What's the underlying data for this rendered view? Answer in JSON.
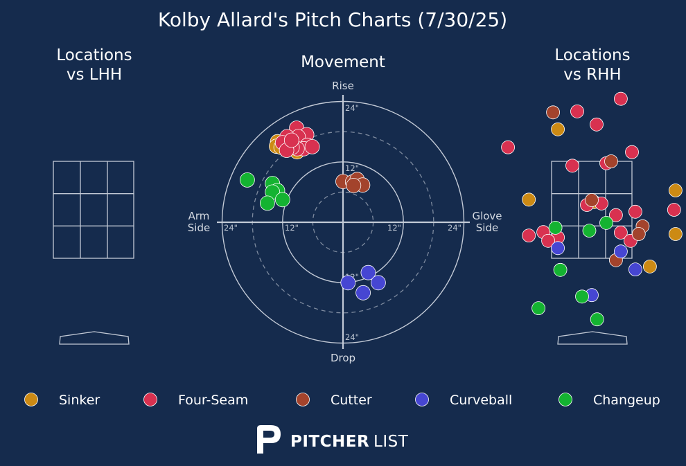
{
  "title": "Kolby Allard's Pitch Charts (7/30/25)",
  "panels": {
    "left": {
      "title_line1": "Locations",
      "title_line2": "vs LHH"
    },
    "center": {
      "title": "Movement"
    },
    "right": {
      "title_line1": "Locations",
      "title_line2": "vs RHH"
    }
  },
  "movement_labels": {
    "top": "Rise",
    "bottom": "Drop",
    "left_line1": "Arm",
    "left_line2": "Side",
    "right_line1": "Glove",
    "right_line2": "Side",
    "ring_ticks": [
      "24\"",
      "12\"",
      "12\"",
      "24\"",
      "12\"",
      "24\"",
      "12\"",
      "24\""
    ]
  },
  "brand": {
    "name_bold": "PITCHER",
    "name_light": "LIST"
  },
  "chart_data": [
    {
      "type": "scatter",
      "name": "movement",
      "title": "Movement",
      "units": "inches",
      "xlim": [
        -24,
        24
      ],
      "ylim": [
        -24,
        24
      ],
      "rings": [
        6,
        12,
        18,
        24
      ],
      "series": [
        {
          "name": "Sinker",
          "color": "#cc8a14",
          "points": [
            [
              -13,
              16
            ],
            [
              -13.2,
              15.1
            ],
            [
              -12.3,
              14.9
            ],
            [
              -11.3,
              15.1
            ],
            [
              -9.1,
              14
            ],
            [
              -11.1,
              15.3
            ]
          ]
        },
        {
          "name": "Four-Seam",
          "color": "#d83150",
          "points": [
            [
              -9.2,
              18.7
            ],
            [
              -7.2,
              17.4
            ],
            [
              -8.9,
              17
            ],
            [
              -11.1,
              17
            ],
            [
              -12,
              15.8
            ],
            [
              -10.1,
              15.5
            ],
            [
              -7.1,
              15.3
            ],
            [
              -7.8,
              14.6
            ],
            [
              -9.1,
              14.6
            ],
            [
              -10.1,
              14.9
            ],
            [
              -6.1,
              15
            ],
            [
              -11.2,
              14.3
            ],
            [
              -10.2,
              16.3
            ]
          ]
        },
        {
          "name": "Cutter",
          "color": "#a3432c",
          "points": [
            [
              0,
              8.1
            ],
            [
              1.9,
              8
            ],
            [
              2.8,
              8.5
            ],
            [
              3.9,
              7.4
            ],
            [
              2.1,
              7.3
            ]
          ]
        },
        {
          "name": "Curveball",
          "color": "#4646d2",
          "points": [
            [
              5,
              -10
            ],
            [
              7,
              -12
            ],
            [
              1,
              -12
            ],
            [
              4,
              -14
            ]
          ]
        },
        {
          "name": "Changeup",
          "color": "#14b331",
          "points": [
            [
              -19,
              8.4
            ],
            [
              -14,
              7.7
            ],
            [
              -13,
              6.3
            ],
            [
              -14,
              6
            ],
            [
              -12,
              4.5
            ],
            [
              -15,
              3.8
            ]
          ]
        }
      ]
    },
    {
      "type": "scatter",
      "name": "locations-vs-lhh",
      "title": "Locations vs LHH",
      "series": []
    },
    {
      "type": "scatter",
      "name": "locations-vs-rhh",
      "title": "Locations vs RHH",
      "units": "feet",
      "xlim": [
        -1.8,
        2.35
      ],
      "ylim": [
        -0.3,
        5.1
      ],
      "strike_zone": {
        "x": [
          -0.83,
          0.83
        ],
        "y": [
          1.5,
          3.5
        ]
      },
      "series": [
        {
          "name": "Sinker",
          "color": "#cc8a14",
          "points": [
            [
              -1.3,
              2.71
            ],
            [
              -0.7,
              4.16
            ],
            [
              0.05,
              2.66
            ],
            [
              1.2,
              1.33
            ],
            [
              1.73,
              2.0
            ],
            [
              1.73,
              2.9
            ]
          ]
        },
        {
          "name": "Four-Seam",
          "color": "#d83150",
          "points": [
            [
              0.6,
              4.79
            ],
            [
              -0.3,
              4.53
            ],
            [
              0.1,
              4.26
            ],
            [
              -1.73,
              3.79
            ],
            [
              -0.4,
              3.41
            ],
            [
              0.3,
              3.46
            ],
            [
              0.83,
              3.69
            ],
            [
              0.2,
              2.63
            ],
            [
              -0.1,
              2.6
            ],
            [
              0.5,
              2.39
            ],
            [
              0.9,
              2.46
            ],
            [
              1.7,
              2.5
            ],
            [
              -1.0,
              2.04
            ],
            [
              -1.3,
              1.97
            ],
            [
              -0.7,
              1.93
            ],
            [
              -0.9,
              1.86
            ],
            [
              0.6,
              2.03
            ],
            [
              0.8,
              1.86
            ]
          ]
        },
        {
          "name": "Cutter",
          "color": "#a3432c",
          "points": [
            [
              -0.8,
              4.51
            ],
            [
              0.4,
              3.5
            ],
            [
              0,
              2.7
            ],
            [
              1.05,
              2.16
            ],
            [
              0.97,
              2.0
            ],
            [
              0.5,
              1.46
            ]
          ]
        },
        {
          "name": "Curveball",
          "color": "#4646d2",
          "points": [
            [
              -0.7,
              1.71
            ],
            [
              0.6,
              1.64
            ],
            [
              0.9,
              1.27
            ],
            [
              0,
              0.74
            ]
          ]
        },
        {
          "name": "Changeup",
          "color": "#14b331",
          "points": [
            [
              -0.75,
              2.13
            ],
            [
              -0.05,
              2.07
            ],
            [
              0.3,
              2.23
            ],
            [
              -0.65,
              1.26
            ],
            [
              -1.1,
              0.47
            ],
            [
              -0.2,
              0.71
            ],
            [
              0.11,
              0.24
            ]
          ]
        }
      ]
    }
  ]
}
